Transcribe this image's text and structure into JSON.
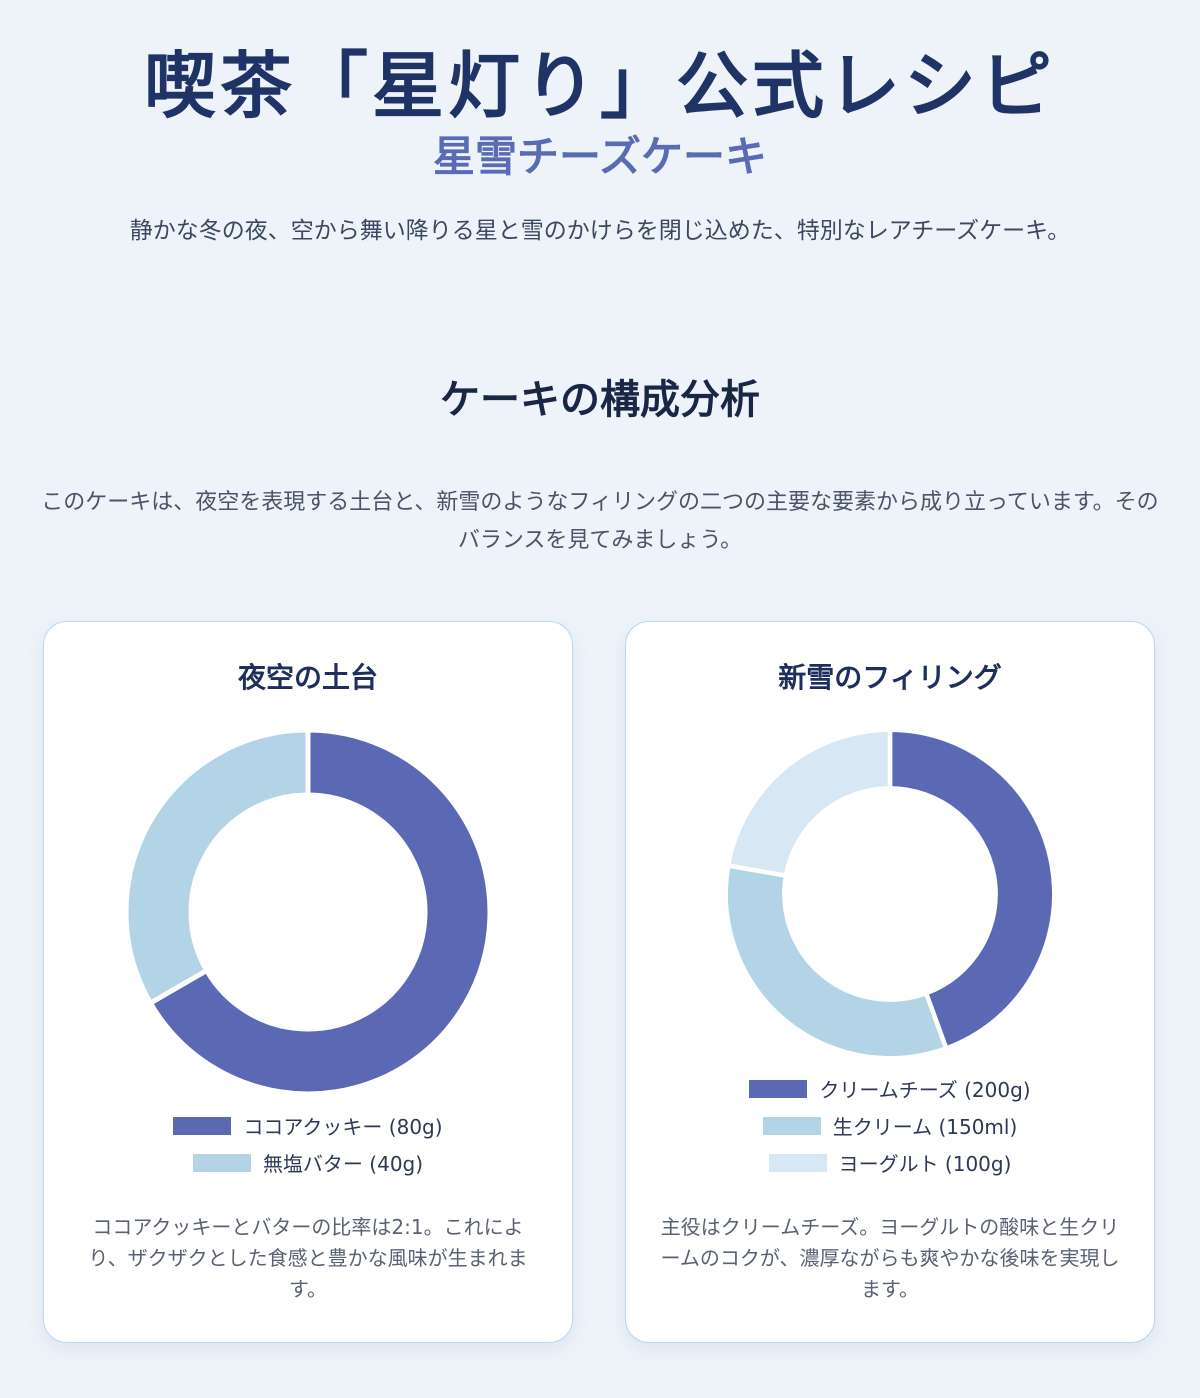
{
  "header": {
    "title": "喫茶「星灯り」公式レシピ",
    "subtitle": "星雪チーズケーキ",
    "intro": "静かな冬の夜、空から舞い降りる星と雪のかけらを閉じ込めた、特別なレアチーズケーキ。"
  },
  "section": {
    "title": "ケーキの構成分析",
    "intro": "このケーキは、夜空を表現する土台と、新雪のようなフィリングの二つの主要な要素から成り立っています。そのバランスを見てみましょう。"
  },
  "cards": [
    {
      "title": "夜空の土台",
      "note": "ココアクッキーとバターの比率は2:1。これにより、ザクザクとした食感と豊かな風味が生まれます。"
    },
    {
      "title": "新雪のフィリング",
      "note": "主役はクリームチーズ。ヨーグルトの酸味と生クリームのコクが、濃厚ながらも爽やかな後味を実現します。"
    }
  ],
  "chart_data": [
    {
      "type": "pie",
      "title": "夜空の土台",
      "categories": [
        "ココアクッキー (80g)",
        "無塩バター (40g)"
      ],
      "values": [
        80,
        40
      ],
      "colors": [
        "#5b69b5",
        "#b2d4e6"
      ],
      "legend": "bottom"
    },
    {
      "type": "pie",
      "title": "新雪のフィリング",
      "categories": [
        "クリームチーズ (200g)",
        "生クリーム (150ml)",
        "ヨーグルト (100g)"
      ],
      "values": [
        200,
        150,
        100
      ],
      "colors": [
        "#5b69b5",
        "#b2d4e6",
        "#d7e7f4"
      ],
      "legend": "bottom"
    }
  ]
}
